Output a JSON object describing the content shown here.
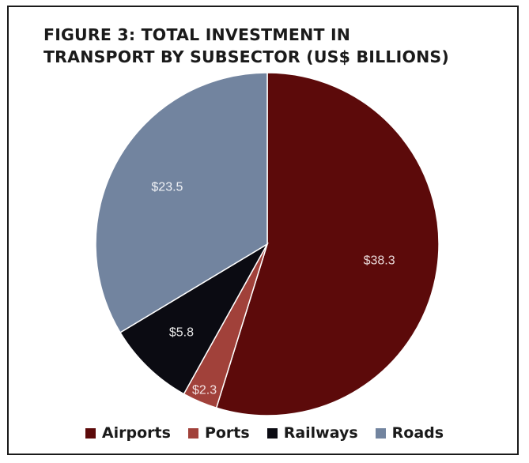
{
  "chart_data": {
    "type": "pie",
    "title_line1": "FIGURE 3: TOTAL INVESTMENT IN",
    "title_line2": "TRANSPORT BY SUBSECTOR (US$ BILLIONS)",
    "slices": [
      {
        "label": "Airports",
        "value": 38.3,
        "display": "$38.3",
        "color": "#5c0a0a",
        "label_color": "#e8d8d8"
      },
      {
        "label": "Ports",
        "value": 2.3,
        "display": "$2.3",
        "color": "#a1413a",
        "label_color": "#f2e2e2"
      },
      {
        "label": "Railways",
        "value": 5.8,
        "display": "$5.8",
        "color": "#0b0b12",
        "label_color": "#e6e6e6"
      },
      {
        "label": "Roads",
        "value": 23.5,
        "display": "$23.5",
        "color": "#72849f",
        "label_color": "#f0f2f6"
      }
    ],
    "legend_placement": "bottom"
  }
}
